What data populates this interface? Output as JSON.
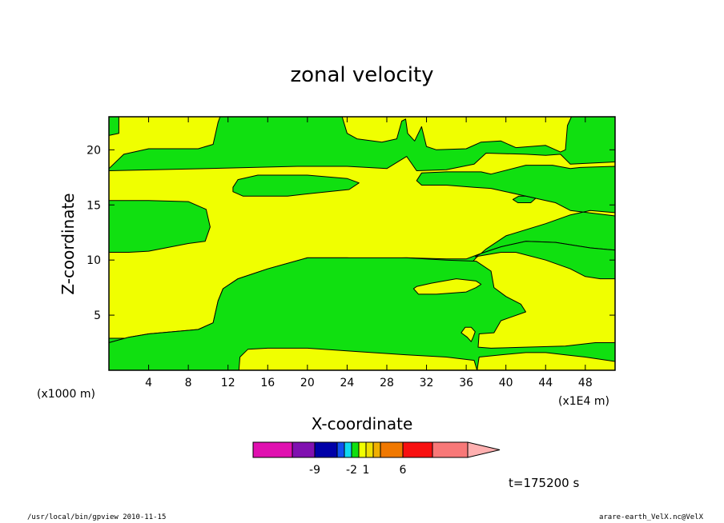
{
  "chart_data": {
    "type": "heatmap",
    "title": "zonal velocity",
    "xlabel": "X-coordinate",
    "ylabel": "Z-coordinate",
    "x_units": "(x1E4 m)",
    "y_units": "(x1000 m)",
    "xlim": [
      0,
      51
    ],
    "ylim": [
      0,
      23
    ],
    "x_ticks": [
      4,
      8,
      12,
      16,
      20,
      24,
      28,
      32,
      36,
      40,
      44,
      48
    ],
    "y_ticks": [
      5,
      10,
      15,
      20
    ],
    "colorbar": {
      "colors": [
        "#e010b0",
        "#8010b0",
        "#0000a8",
        "#1050f0",
        "#10d8f0",
        "#10e010",
        "#f0ff00",
        "#f0e000",
        "#f0b000",
        "#f07800",
        "#f81010",
        "#f87878",
        "#ffb0b0"
      ],
      "labels": [
        {
          "value": -9,
          "text": "-9"
        },
        {
          "value": -2,
          "text": "-2"
        },
        {
          "value": 1,
          "text": "1"
        },
        {
          "value": 6,
          "text": "6"
        }
      ]
    },
    "shaded_regions": [
      {
        "color": "#10e010",
        "points": [
          [
            0,
            18.3
          ],
          [
            1.5,
            19.6
          ],
          [
            4,
            20.1
          ],
          [
            9,
            20.1
          ],
          [
            10.5,
            20.5
          ],
          [
            11,
            22.5
          ],
          [
            11.2,
            23
          ],
          [
            23.5,
            23
          ],
          [
            24,
            21.5
          ],
          [
            25,
            21
          ],
          [
            27.5,
            20.7
          ],
          [
            29,
            21
          ],
          [
            29.5,
            22.6
          ],
          [
            29.9,
            22.8
          ],
          [
            30.1,
            21.5
          ],
          [
            30.8,
            20.8
          ],
          [
            31.5,
            22.1
          ],
          [
            32,
            20.3
          ],
          [
            33,
            20
          ],
          [
            36,
            20.1
          ],
          [
            37.5,
            20.7
          ],
          [
            39.5,
            20.8
          ],
          [
            41,
            20.2
          ],
          [
            44,
            20.4
          ],
          [
            45.5,
            19.8
          ],
          [
            46,
            20
          ],
          [
            46.2,
            22.2
          ],
          [
            46.6,
            23
          ],
          [
            51,
            23
          ],
          [
            51,
            18.9
          ],
          [
            46.5,
            18.7
          ],
          [
            45.5,
            19.6
          ],
          [
            44,
            19.5
          ],
          [
            42,
            19.6
          ],
          [
            38,
            19.7
          ],
          [
            36.8,
            18.7
          ],
          [
            34,
            18.2
          ],
          [
            31,
            18.1
          ],
          [
            30,
            19.4
          ],
          [
            28,
            18.3
          ],
          [
            24,
            18.5
          ],
          [
            19,
            18.5
          ],
          [
            10,
            18.3
          ],
          [
            0,
            18.1
          ]
        ]
      },
      {
        "color": "#10e010",
        "points": [
          [
            0,
            21.3
          ],
          [
            1,
            21.5
          ],
          [
            1,
            23
          ],
          [
            0,
            23
          ]
        ]
      },
      {
        "color": "#10e010",
        "points": [
          [
            12.5,
            16.6
          ],
          [
            13,
            17.3
          ],
          [
            15,
            17.7
          ],
          [
            20,
            17.7
          ],
          [
            24,
            17.4
          ],
          [
            25.2,
            17
          ],
          [
            24.2,
            16.4
          ],
          [
            21,
            16.1
          ],
          [
            18,
            15.8
          ],
          [
            13.5,
            15.8
          ],
          [
            12.5,
            16.2
          ]
        ]
      },
      {
        "color": "#10e010",
        "points": [
          [
            31,
            17.2
          ],
          [
            31.5,
            17.9
          ],
          [
            34,
            18
          ],
          [
            37.5,
            18
          ],
          [
            38.5,
            17.8
          ],
          [
            42,
            18.6
          ],
          [
            44.7,
            18.6
          ],
          [
            46.5,
            18.3
          ],
          [
            47.5,
            18.4
          ],
          [
            51,
            18.5
          ],
          [
            51,
            14.3
          ],
          [
            48.5,
            14.5
          ],
          [
            46.5,
            14.1
          ],
          [
            44,
            13.3
          ],
          [
            40,
            12.2
          ],
          [
            38,
            11
          ],
          [
            37,
            10.2
          ],
          [
            36.5,
            9.7
          ],
          [
            37,
            9.1
          ],
          [
            34,
            9.7
          ],
          [
            24,
            10.2
          ],
          [
            20,
            10.2
          ],
          [
            16,
            9.2
          ],
          [
            13,
            8.3
          ],
          [
            11.5,
            7.4
          ],
          [
            11,
            6.3
          ],
          [
            10.5,
            4.3
          ],
          [
            9,
            3.7
          ],
          [
            4,
            3.3
          ],
          [
            2,
            3
          ],
          [
            0,
            2.5
          ],
          [
            0,
            2.9
          ],
          [
            3,
            2.9
          ],
          [
            8,
            2.9
          ],
          [
            10,
            3.1
          ],
          [
            11.2,
            4.5
          ],
          [
            12,
            6.3
          ],
          [
            13,
            7.3
          ],
          [
            15.5,
            8.3
          ],
          [
            20,
            9.5
          ],
          [
            24,
            10.1
          ],
          [
            30,
            10.2
          ],
          [
            34,
            10.1
          ],
          [
            36,
            10.1
          ],
          [
            37.5,
            10.6
          ],
          [
            39.5,
            11.2
          ],
          [
            42,
            11.7
          ],
          [
            45,
            11.6
          ],
          [
            48.5,
            11.1
          ],
          [
            51,
            10.9
          ],
          [
            51,
            14
          ],
          [
            46.5,
            14.5
          ],
          [
            45,
            15.2
          ],
          [
            42,
            15.8
          ],
          [
            40,
            16.2
          ],
          [
            38.5,
            16.5
          ],
          [
            36.8,
            16.6
          ],
          [
            34,
            16.8
          ],
          [
            31.5,
            16.8
          ]
        ]
      },
      {
        "color": "#10e010",
        "points": [
          [
            0,
            15.4
          ],
          [
            4,
            15.4
          ],
          [
            8,
            15.3
          ],
          [
            9.8,
            14.6
          ],
          [
            10.2,
            13
          ],
          [
            9.7,
            11.7
          ],
          [
            8,
            11.5
          ],
          [
            4,
            10.8
          ],
          [
            2,
            10.7
          ],
          [
            0,
            10.7
          ]
        ]
      },
      {
        "color": "#10e010",
        "points": [
          [
            40.7,
            15.5
          ],
          [
            41.3,
            15.8
          ],
          [
            42,
            15.8
          ],
          [
            43,
            15.6
          ],
          [
            42.5,
            15.2
          ],
          [
            41.2,
            15.2
          ]
        ]
      },
      {
        "color": "#10e010",
        "points": [
          [
            36.9,
            10.3
          ],
          [
            38.2,
            10.5
          ],
          [
            39.5,
            10.7
          ],
          [
            41,
            10.7
          ],
          [
            44,
            10
          ],
          [
            46.5,
            9.2
          ],
          [
            48,
            8.5
          ],
          [
            49.5,
            8.3
          ],
          [
            51,
            8.3
          ],
          [
            51,
            10.9
          ],
          [
            48.5,
            11.1
          ],
          [
            45,
            11.6
          ],
          [
            42,
            11.7
          ],
          [
            39.5,
            11.2
          ],
          [
            37.5,
            10.6
          ]
        ]
      },
      {
        "color": "#10e010",
        "points": [
          [
            10.5,
            4.3
          ],
          [
            11,
            6.3
          ],
          [
            11.5,
            7.4
          ],
          [
            13,
            8.3
          ],
          [
            16,
            9.2
          ],
          [
            20,
            10.2
          ],
          [
            24,
            10.2
          ],
          [
            30,
            10.2
          ],
          [
            34,
            10
          ],
          [
            37,
            9.9
          ],
          [
            38.5,
            9
          ],
          [
            38.8,
            7.5
          ],
          [
            40,
            6.7
          ],
          [
            41.5,
            6
          ],
          [
            42,
            5.3
          ],
          [
            39.5,
            4.5
          ],
          [
            38.8,
            3.4
          ],
          [
            37.3,
            3.3
          ],
          [
            37.2,
            2.1
          ],
          [
            38.5,
            2
          ],
          [
            42,
            2.1
          ],
          [
            46,
            2.2
          ],
          [
            49,
            2.5
          ],
          [
            51,
            2.5
          ],
          [
            51,
            0.8
          ],
          [
            48,
            1.2
          ],
          [
            46,
            1.4
          ],
          [
            44,
            1.6
          ],
          [
            42,
            1.6
          ],
          [
            39.5,
            1.4
          ],
          [
            37.3,
            1.2
          ],
          [
            37.1,
            0
          ],
          [
            36.8,
            0.9
          ],
          [
            34,
            1.2
          ],
          [
            30,
            1.4
          ],
          [
            25,
            1.7
          ],
          [
            20,
            2
          ],
          [
            16,
            2
          ],
          [
            14,
            1.9
          ],
          [
            13.2,
            1.2
          ],
          [
            13.1,
            0
          ],
          [
            12.5,
            0
          ],
          [
            0,
            0
          ],
          [
            0,
            2.5
          ],
          [
            2,
            3
          ],
          [
            4,
            3.3
          ],
          [
            9,
            3.7
          ]
        ]
      },
      {
        "color": "#f0ff00",
        "points": [
          [
            30.7,
            7.4
          ],
          [
            31,
            7.6
          ],
          [
            32.5,
            7.9
          ],
          [
            35,
            8.3
          ],
          [
            37,
            8.1
          ],
          [
            37.5,
            7.8
          ],
          [
            37,
            7.5
          ],
          [
            36,
            7.1
          ],
          [
            33,
            6.9
          ],
          [
            31.2,
            6.9
          ]
        ]
      },
      {
        "color": "#f0ff00",
        "points": [
          [
            35.5,
            3.4
          ],
          [
            35.9,
            3.9
          ],
          [
            36.5,
            3.9
          ],
          [
            36.9,
            3.5
          ],
          [
            36.7,
            3
          ],
          [
            36.5,
            2.6
          ],
          [
            36.1,
            3
          ]
        ]
      }
    ],
    "annotation": "t=175200 s"
  },
  "footer": {
    "left": "/usr/local/bin/gpview   2010-11-15",
    "right": "arare-earth_VelX.nc@VelX"
  }
}
